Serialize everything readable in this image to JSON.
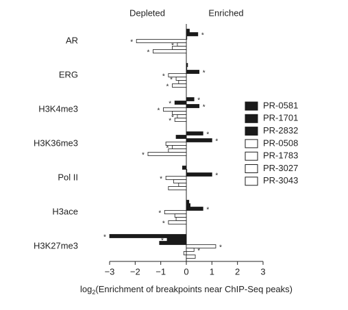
{
  "chart_data": {
    "type": "hbar",
    "annotations": {
      "left": "Depleted",
      "right": "Enriched"
    },
    "xlabel": {
      "base": "log",
      "sub": "2",
      "rest": "(Enrichment of breakpoints near ChIP-Seq peaks)"
    },
    "categories": [
      "AR",
      "ERG",
      "H3K4me3",
      "H3K36me3",
      "Pol II",
      "H3ace",
      "H3K27me3"
    ],
    "series": [
      {
        "name": "PR-0581",
        "color": "#1a1a1a",
        "values": [
          0.12,
          0.05,
          0.3,
          0.65,
          -0.15,
          0.1,
          -3.0
        ],
        "stars": [
          null,
          null,
          "*",
          "*",
          null,
          null,
          "*"
        ]
      },
      {
        "name": "PR-1701",
        "color": "#1a1a1a",
        "values": [
          0.45,
          0.02,
          -0.45,
          -0.4,
          0.02,
          0.15,
          -0.75
        ],
        "stars": [
          "*",
          null,
          "*",
          null,
          null,
          null,
          "*"
        ]
      },
      {
        "name": "PR-2832",
        "color": "#1a1a1a",
        "values": [
          0.02,
          0.5,
          0.5,
          1.0,
          1.0,
          0.65,
          -1.05
        ],
        "stars": [
          null,
          "*",
          "*",
          "*",
          "*",
          "*",
          null
        ]
      },
      {
        "name": "PR-0508",
        "color": "#ffffff",
        "values": [
          -1.95,
          -0.7,
          -0.9,
          -0.8,
          -0.8,
          -0.85,
          1.15
        ],
        "stars": [
          "*",
          "*",
          "*",
          null,
          "*",
          "*",
          "*"
        ]
      },
      {
        "name": "PR-1783",
        "color": "#ffffff",
        "values": [
          -0.35,
          -0.4,
          -0.55,
          -0.55,
          -0.5,
          -0.45,
          0.3
        ],
        "stars": [
          "*",
          "*",
          null,
          "*",
          null,
          null,
          "*"
        ]
      },
      {
        "name": "PR-3027",
        "color": "#ffffff",
        "values": [
          -0.55,
          -0.3,
          -0.35,
          -0.7,
          -0.3,
          -0.4,
          -0.1
        ],
        "stars": [
          null,
          null,
          "*",
          null,
          null,
          null,
          null
        ]
      },
      {
        "name": "PR-3043",
        "color": "#ffffff",
        "values": [
          -1.3,
          -0.55,
          -0.45,
          -1.5,
          -0.7,
          -0.7,
          0.35
        ],
        "stars": [
          "*",
          "*",
          "*",
          "*",
          null,
          "*",
          null
        ]
      }
    ],
    "xlim": [
      -3,
      3
    ],
    "xticks": [
      {
        "value": -3,
        "label": "−3"
      },
      {
        "value": -2,
        "label": "−2"
      },
      {
        "value": -1,
        "label": "−1"
      },
      0,
      1,
      2,
      3
    ]
  }
}
